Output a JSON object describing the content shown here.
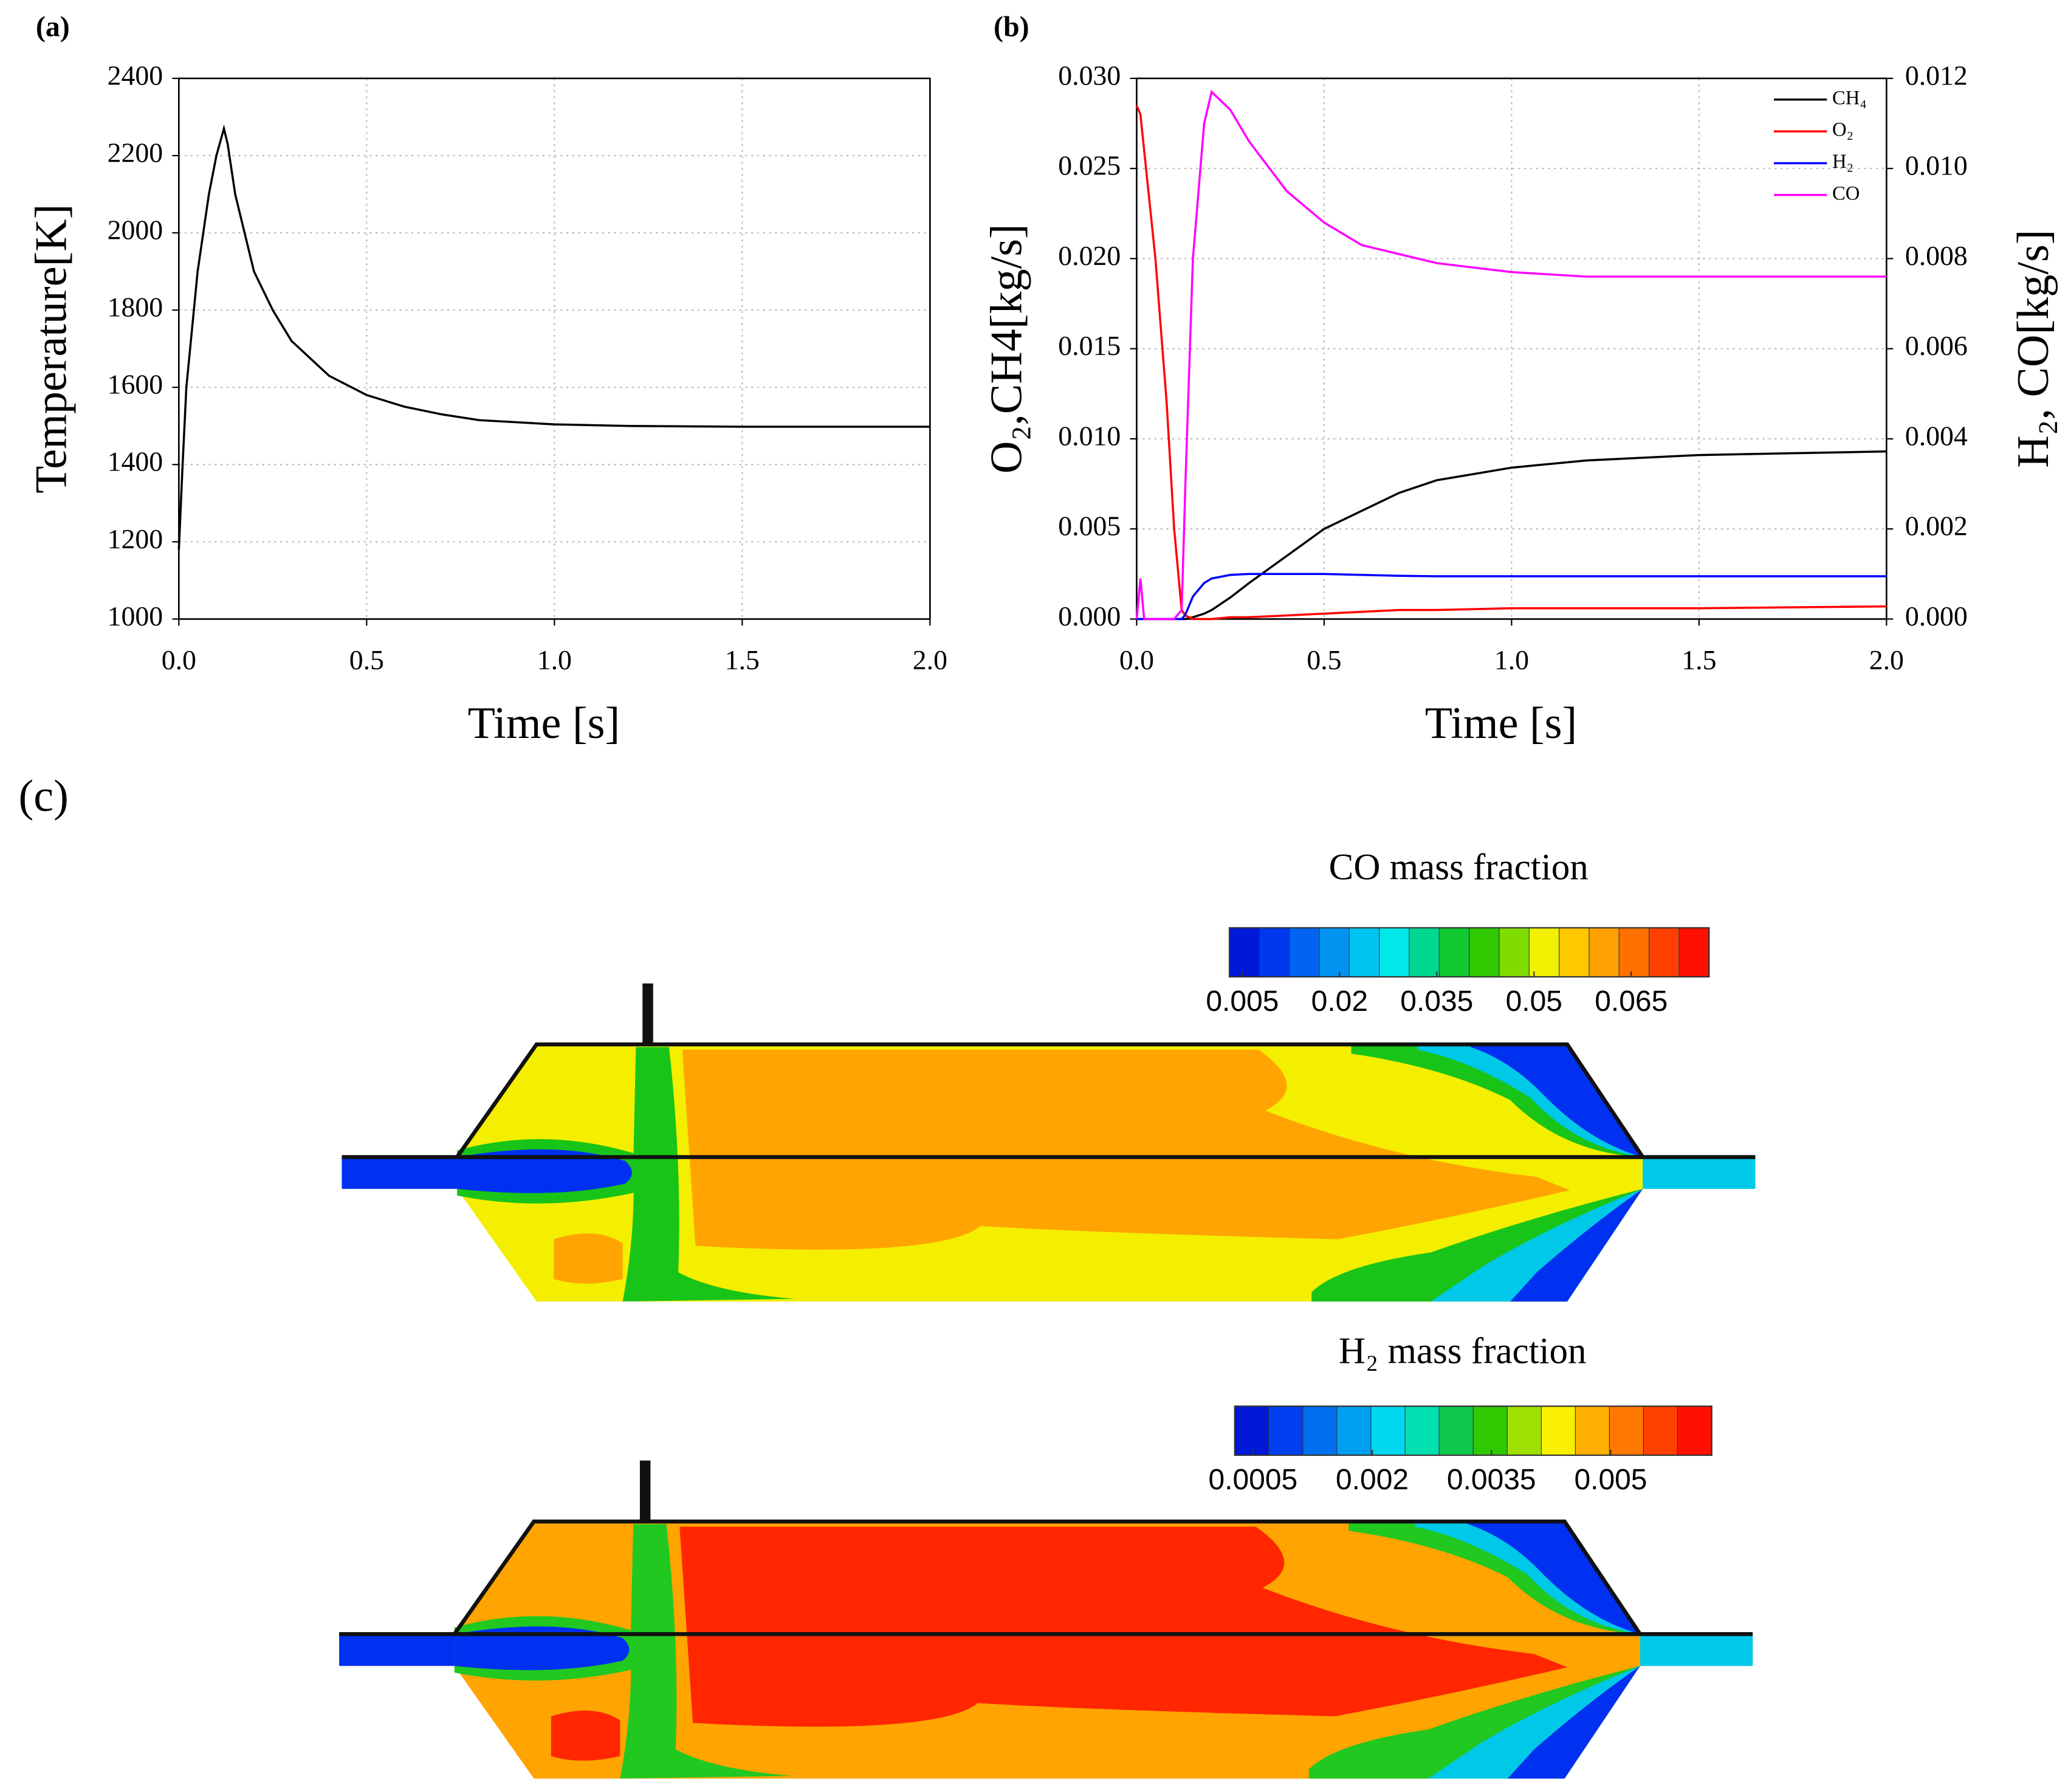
{
  "chart_data": [
    {
      "type": "line",
      "panel": "(a)",
      "xlabel": "Time [s]",
      "ylabel": "Temperature[K]",
      "x": [
        0,
        0.01,
        0.02,
        0.05,
        0.08,
        0.1,
        0.12,
        0.13,
        0.15,
        0.18,
        0.2,
        0.25,
        0.3,
        0.4,
        0.5,
        0.6,
        0.7,
        0.8,
        1.0,
        1.2,
        1.5,
        2.0
      ],
      "values": [
        1180,
        1400,
        1600,
        1900,
        2100,
        2200,
        2270,
        2230,
        2100,
        1980,
        1900,
        1800,
        1720,
        1630,
        1580,
        1550,
        1530,
        1515,
        1504,
        1500,
        1498,
        1498
      ],
      "color": "#000000",
      "xlim": [
        0,
        2
      ],
      "xticks": [
        {
          "value": 0,
          "label": "0.0"
        },
        0.5,
        {
          "value": 1,
          "label": "1.0"
        },
        1.5,
        {
          "value": 2,
          "label": "2.0"
        }
      ],
      "ylim": [
        1000,
        2400
      ],
      "yticks": [
        1000,
        1200,
        1400,
        1600,
        1800,
        2000,
        2200,
        2400
      ],
      "grid": true
    },
    {
      "type": "line",
      "panel": "(b)",
      "xlabel": "Time [s]",
      "ylabel": "O₂,CH4[kg/s]",
      "y2label": "H₂, CO[kg/s]",
      "x": [
        0,
        0.01,
        0.02,
        0.05,
        0.08,
        0.1,
        0.12,
        0.13,
        0.15,
        0.18,
        0.2,
        0.25,
        0.3,
        0.4,
        0.5,
        0.6,
        0.7,
        0.8,
        1.0,
        1.2,
        1.5,
        2.0
      ],
      "series": [
        {
          "name": "CH₄",
          "color": "#000000",
          "values": [
            0,
            0,
            0,
            0,
            0,
            0,
            0,
            0,
            0.0001,
            0.0003,
            0.0005,
            0.0012,
            0.002,
            0.0035,
            0.005,
            0.006,
            0.007,
            0.0077,
            0.0084,
            0.0088,
            0.0091,
            0.0093
          ]
        },
        {
          "name": "O₂",
          "color": "#ff0000",
          "values": [
            0.0285,
            0.028,
            0.026,
            0.02,
            0.012,
            0.005,
            0.0005,
            0.0002,
            0,
            0,
            0,
            0.0001,
            0.0001,
            0.0002,
            0.0003,
            0.0004,
            0.0005,
            0.0005,
            0.0006,
            0.0006,
            0.0006,
            0.0007
          ]
        },
        {
          "name": "H₂",
          "color": "#0000ff",
          "axis": "y2",
          "values": [
            0,
            0,
            0,
            0,
            0,
            0,
            0,
            0.0001,
            0.0005,
            0.0008,
            0.0009,
            0.00098,
            0.001,
            0.001,
            0.001,
            0.00098,
            0.00096,
            0.00095,
            0.00095,
            0.00095,
            0.00095,
            0.00095
          ]
        },
        {
          "name": "CO",
          "color": "#ff00ff",
          "axis": "y2",
          "values": [
            0,
            0.0009,
            0,
            0,
            0,
            0,
            0.0002,
            0.003,
            0.008,
            0.011,
            0.0117,
            0.0113,
            0.0106,
            0.0095,
            0.0088,
            0.0083,
            0.0081,
            0.0079,
            0.0077,
            0.0076,
            0.0076,
            0.0076
          ]
        }
      ],
      "xlim": [
        0,
        2
      ],
      "xticks": [
        {
          "value": 0,
          "label": "0.0"
        },
        0.5,
        {
          "value": 1,
          "label": "1.0"
        },
        1.5,
        {
          "value": 2,
          "label": "2.0"
        }
      ],
      "ylim": [
        0,
        0.03
      ],
      "yticks": [
        {
          "value": 0,
          "label": "0.000"
        },
        {
          "value": 0.005,
          "label": "0.005"
        },
        {
          "value": 0.01,
          "label": "0.010"
        },
        {
          "value": 0.015,
          "label": "0.015"
        },
        {
          "value": 0.02,
          "label": "0.020"
        },
        {
          "value": 0.025,
          "label": "0.025"
        },
        {
          "value": 0.03,
          "label": "0.030"
        }
      ],
      "y2lim": [
        0,
        0.012
      ],
      "y2ticks": [
        {
          "value": 0,
          "label": "0.000"
        },
        {
          "value": 0.002,
          "label": "0.002"
        },
        {
          "value": 0.004,
          "label": "0.004"
        },
        {
          "value": 0.006,
          "label": "0.006"
        },
        {
          "value": 0.008,
          "label": "0.008"
        },
        {
          "value": 0.01,
          "label": "0.010"
        },
        {
          "value": 0.012,
          "label": "0.012"
        }
      ],
      "grid": true,
      "legend": "upper right"
    }
  ],
  "panel_c": {
    "label": "(c)",
    "maps": [
      {
        "title": "CO mass fraction",
        "clim": [
          0.003,
          0.077
        ],
        "ticks": [
          0.005,
          0.02,
          0.035,
          0.05,
          0.065
        ],
        "colors": [
          "#0018d8",
          "#0038f0",
          "#0064f0",
          "#0094f0",
          "#00c4f0",
          "#00e8e8",
          "#00d890",
          "#10c830",
          "#30c800",
          "#80dc00",
          "#f0f000",
          "#ffc800",
          "#ffa000",
          "#ff7000",
          "#ff4000",
          "#ff1000"
        ]
      },
      {
        "title": "H₂ mass fraction",
        "clim": [
          0.00027,
          0.00627
        ],
        "ticks": [
          0.0005,
          0.002,
          0.0035,
          0.005
        ],
        "colors": [
          "#0018d8",
          "#0040f0",
          "#0070f0",
          "#00a0f0",
          "#00d8f0",
          "#00e0b0",
          "#10c850",
          "#30c800",
          "#a0e000",
          "#f8f000",
          "#ffb000",
          "#ff7800",
          "#ff4000",
          "#ff1000"
        ]
      }
    ]
  }
}
